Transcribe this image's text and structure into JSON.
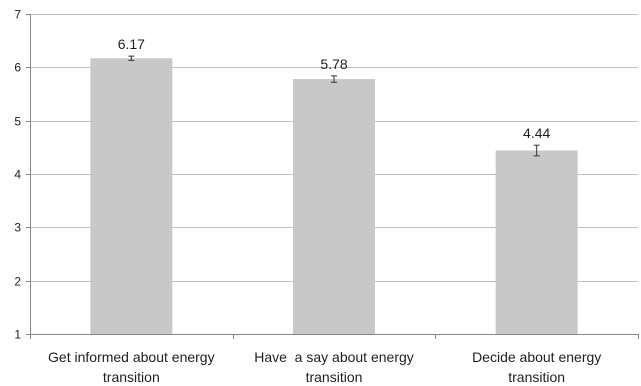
{
  "chart_data": {
    "type": "bar",
    "title": "",
    "xlabel": "",
    "ylabel": "",
    "categories": [
      [
        "Get informed about energy",
        "transition"
      ],
      [
        "Have  a say about energy",
        "transition"
      ],
      [
        "Decide about energy",
        "transition"
      ]
    ],
    "values": [
      6.17,
      5.78,
      4.44
    ],
    "value_labels": [
      "6.17",
      "5.78",
      "4.44"
    ],
    "error_bars": [
      0.04,
      0.06,
      0.1
    ],
    "ylim": [
      1,
      7
    ],
    "yticks": [
      1,
      2,
      3,
      4,
      5,
      6,
      7
    ],
    "ytick_labels": [
      "1",
      "2",
      "3",
      "4",
      "5",
      "6",
      "7"
    ],
    "grid": true,
    "legend": "none",
    "colors": {
      "bar": "#c8c8c8",
      "grid": "#bfbfbf",
      "axis": "#868686",
      "text": "#1f1f1f",
      "error_bar": "#333333"
    }
  }
}
